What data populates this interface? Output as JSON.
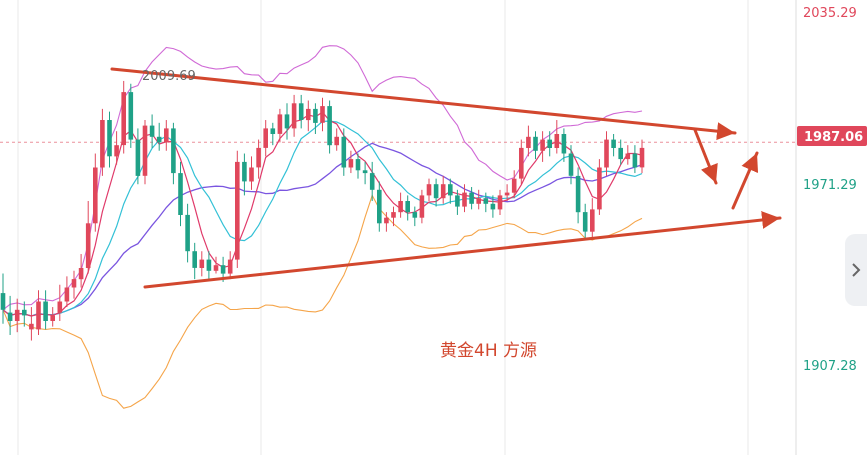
{
  "chart_data": {
    "type": "candlestick",
    "annotation": "黄金4H  方源",
    "high_marker": "2009.69",
    "current_price": "1987.06",
    "y_ticks": [
      "2035.29",
      "1971.29",
      "1907.28"
    ],
    "ylim": [
      1875,
      2038
    ],
    "colors": {
      "up": "#e0475b",
      "down": "#1fa187",
      "trend": "#d2472e",
      "price_tag": "#e0475b",
      "axis_red": "#e0475b",
      "axis_green": "#1fa187",
      "bb_band": "#d06ad6",
      "ma_fast": "#e03a6a",
      "ma_mid": "#33c1d6",
      "ma_slow": "#7a55e0",
      "bb_lower": "#f5a54a",
      "grid": "#e8e8e8"
    },
    "candles": [
      [
        1933,
        1927,
        1940,
        1922
      ],
      [
        1926,
        1923,
        1932,
        1918
      ],
      [
        1923,
        1927,
        1931,
        1919
      ],
      [
        1927,
        1925,
        1930,
        1921
      ],
      [
        1920,
        1922,
        1928,
        1916
      ],
      [
        1920,
        1930,
        1934,
        1918
      ],
      [
        1930,
        1923,
        1934,
        1920
      ],
      [
        1923,
        1925,
        1928,
        1921
      ],
      [
        1926,
        1930,
        1936,
        1923
      ],
      [
        1930,
        1935,
        1939,
        1928
      ],
      [
        1935,
        1938,
        1941,
        1931
      ],
      [
        1938,
        1942,
        1947,
        1935
      ],
      [
        1942,
        1958,
        1966,
        1940
      ],
      [
        1958,
        1978,
        1983,
        1955
      ],
      [
        1978,
        1995,
        1999,
        1975
      ],
      [
        1995,
        1982,
        1998,
        1978
      ],
      [
        1982,
        1986,
        1991,
        1979
      ],
      [
        1986,
        2005,
        2009,
        1983
      ],
      [
        2005,
        1988,
        2008,
        1985
      ],
      [
        1988,
        1975,
        1992,
        1972
      ],
      [
        1975,
        1993,
        1995,
        1972
      ],
      [
        1993,
        1989,
        1997,
        1985
      ],
      [
        1989,
        1987,
        1994,
        1984
      ],
      [
        1987,
        1992,
        1995,
        1984
      ],
      [
        1992,
        1976,
        1994,
        1972
      ],
      [
        1976,
        1961,
        1980,
        1957
      ],
      [
        1961,
        1948,
        1965,
        1944
      ],
      [
        1948,
        1942,
        1951,
        1938
      ],
      [
        1942,
        1945,
        1948,
        1939
      ],
      [
        1945,
        1941,
        1948,
        1938
      ],
      [
        1941,
        1943,
        1946,
        1940
      ],
      [
        1943,
        1940,
        1946,
        1937
      ],
      [
        1940,
        1945,
        1948,
        1938
      ],
      [
        1945,
        1980,
        1984,
        1942
      ],
      [
        1980,
        1973,
        1983,
        1968
      ],
      [
        1973,
        1978,
        1982,
        1970
      ],
      [
        1978,
        1985,
        1988,
        1974
      ],
      [
        1985,
        1992,
        1995,
        1982
      ],
      [
        1992,
        1990,
        1994,
        1986
      ],
      [
        1990,
        1997,
        1999,
        1987
      ],
      [
        1997,
        1992,
        2001,
        1988
      ],
      [
        1992,
        2001,
        2004,
        1989
      ],
      [
        2001,
        1995,
        2004,
        1992
      ],
      [
        1995,
        1999,
        2002,
        1991
      ],
      [
        1999,
        1994,
        2001,
        1990
      ],
      [
        1994,
        2000,
        2003,
        1991
      ],
      [
        2000,
        1986,
        2002,
        1983
      ],
      [
        1986,
        1989,
        1992,
        1984
      ],
      [
        1989,
        1978,
        1992,
        1975
      ],
      [
        1978,
        1981,
        1984,
        1976
      ],
      [
        1981,
        1977,
        1983,
        1974
      ],
      [
        1977,
        1976,
        1980,
        1972
      ],
      [
        1976,
        1970,
        1980,
        1966
      ],
      [
        1970,
        1958,
        1973,
        1955
      ],
      [
        1958,
        1960,
        1962,
        1955
      ],
      [
        1960,
        1962,
        1964,
        1957
      ],
      [
        1962,
        1966,
        1969,
        1960
      ],
      [
        1966,
        1962,
        1968,
        1959
      ],
      [
        1962,
        1960,
        1964,
        1957
      ],
      [
        1960,
        1968,
        1970,
        1958
      ],
      [
        1968,
        1972,
        1974,
        1966
      ],
      [
        1972,
        1967,
        1974,
        1964
      ],
      [
        1967,
        1972,
        1975,
        1965
      ],
      [
        1972,
        1968,
        1974,
        1965
      ],
      [
        1968,
        1964,
        1970,
        1961
      ],
      [
        1964,
        1969,
        1972,
        1962
      ],
      [
        1969,
        1965,
        1971,
        1963
      ],
      [
        1965,
        1967,
        1970,
        1963
      ],
      [
        1967,
        1965,
        1969,
        1962
      ],
      [
        1965,
        1963,
        1968,
        1960
      ],
      [
        1963,
        1968,
        1970,
        1961
      ],
      [
        1968,
        1969,
        1972,
        1966
      ],
      [
        1969,
        1974,
        1977,
        1967
      ],
      [
        1974,
        1985,
        1988,
        1972
      ],
      [
        1985,
        1989,
        1993,
        1982
      ],
      [
        1989,
        1984,
        1991,
        1981
      ],
      [
        1984,
        1988,
        1991,
        1980
      ],
      [
        1988,
        1985,
        1991,
        1982
      ],
      [
        1985,
        1990,
        1995,
        1983
      ],
      [
        1990,
        1983,
        1992,
        1980
      ],
      [
        1983,
        1975,
        1986,
        1972
      ],
      [
        1975,
        1962,
        1978,
        1958
      ],
      [
        1962,
        1955,
        1965,
        1952
      ],
      [
        1955,
        1963,
        1967,
        1953
      ],
      [
        1963,
        1978,
        1981,
        1961
      ],
      [
        1978,
        1988,
        1991,
        1975
      ],
      [
        1988,
        1985,
        1990,
        1982
      ],
      [
        1985,
        1981,
        1988,
        1979
      ],
      [
        1981,
        1983,
        1986,
        1979
      ],
      [
        1983,
        1978,
        1986,
        1976
      ],
      [
        1978,
        1985,
        1988,
        1976
      ]
    ]
  }
}
